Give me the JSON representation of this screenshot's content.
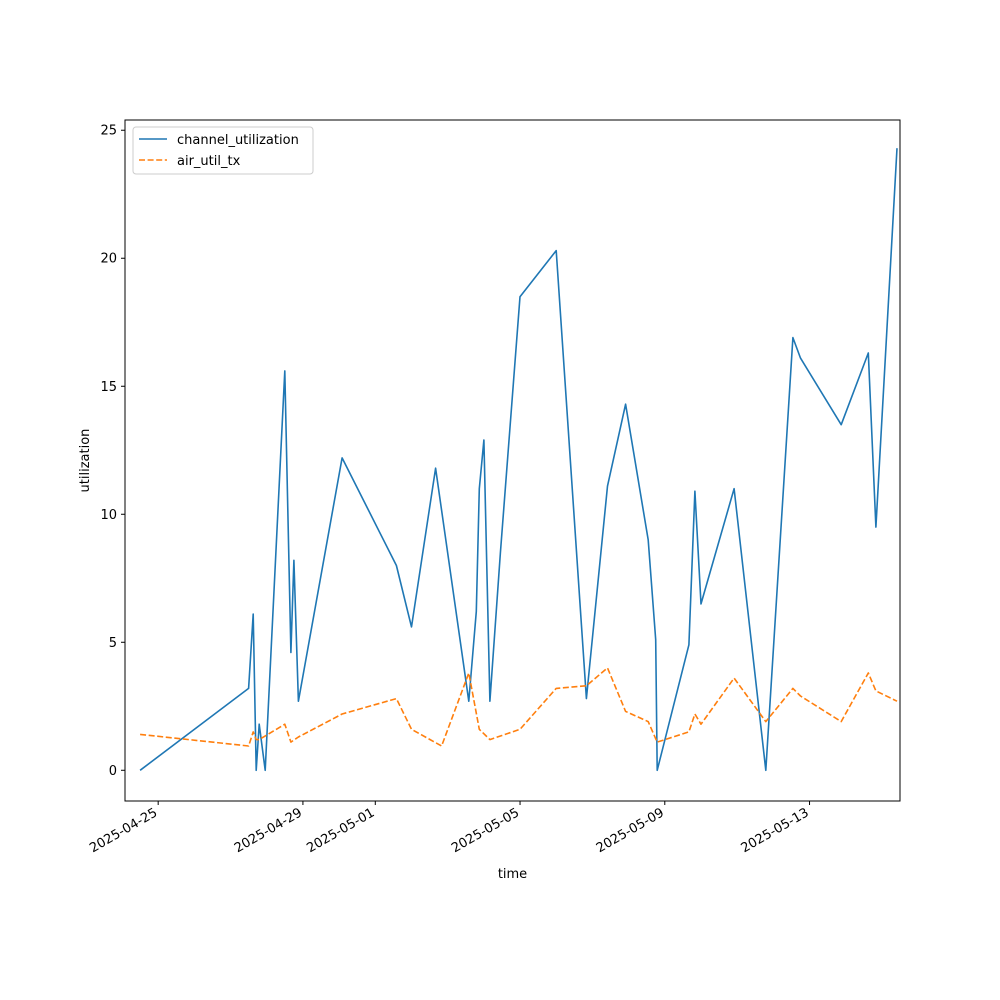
{
  "chart_data": {
    "type": "line",
    "xlabel": "time",
    "ylabel": "utilization",
    "xlim": [
      "2025-04-24 02:00",
      "2025-05-15 12:00"
    ],
    "ylim": [
      -1.2,
      25.4
    ],
    "grid": false,
    "legend_position": "top-left",
    "x_ticks": [
      "2025-04-25",
      "2025-04-29",
      "2025-05-01",
      "2025-05-05",
      "2025-05-09",
      "2025-05-13"
    ],
    "y_ticks": [
      0,
      5,
      10,
      15,
      20,
      25
    ],
    "series": [
      {
        "name": "channel_utilization",
        "color": "#1f77b4",
        "style": "solid",
        "points": [
          [
            "2025-04-24 12:00",
            0.0
          ],
          [
            "2025-04-27 12:00",
            3.2
          ],
          [
            "2025-04-27 15:00",
            6.1
          ],
          [
            "2025-04-27 17:00",
            0.0
          ],
          [
            "2025-04-27 19:00",
            1.8
          ],
          [
            "2025-04-27 23:00",
            0.0
          ],
          [
            "2025-04-28 12:00",
            15.6
          ],
          [
            "2025-04-28 16:00",
            4.6
          ],
          [
            "2025-04-28 18:00",
            8.2
          ],
          [
            "2025-04-28 21:00",
            2.7
          ],
          [
            "2025-04-30 02:00",
            12.2
          ],
          [
            "2025-05-01 14:00",
            8.0
          ],
          [
            "2025-05-02 00:00",
            5.6
          ],
          [
            "2025-05-02 16:00",
            11.8
          ],
          [
            "2025-05-03 14:00",
            2.7
          ],
          [
            "2025-05-03 19:00",
            6.2
          ],
          [
            "2025-05-03 21:00",
            11.0
          ],
          [
            "2025-05-04 00:00",
            12.9
          ],
          [
            "2025-05-04 04:00",
            2.7
          ],
          [
            "2025-05-04 11:00",
            8.5
          ],
          [
            "2025-05-05 00:00",
            18.5
          ],
          [
            "2025-05-06 00:00",
            20.3
          ],
          [
            "2025-05-06 20:00",
            2.8
          ],
          [
            "2025-05-07 10:00",
            11.1
          ],
          [
            "2025-05-07 22:00",
            14.3
          ],
          [
            "2025-05-08 13:00",
            9.0
          ],
          [
            "2025-05-08 18:00",
            5.1
          ],
          [
            "2025-05-08 19:00",
            0.0
          ],
          [
            "2025-05-09 16:00",
            4.9
          ],
          [
            "2025-05-09 20:00",
            10.9
          ],
          [
            "2025-05-10 00:00",
            6.5
          ],
          [
            "2025-05-10 22:00",
            11.0
          ],
          [
            "2025-05-11 19:00",
            0.0
          ],
          [
            "2025-05-12 13:00",
            16.9
          ],
          [
            "2025-05-12 18:00",
            16.1
          ],
          [
            "2025-05-13 21:00",
            13.5
          ],
          [
            "2025-05-14 15:00",
            16.3
          ],
          [
            "2025-05-14 20:00",
            9.5
          ],
          [
            "2025-05-15 10:00",
            24.3
          ]
        ]
      },
      {
        "name": "air_util_tx",
        "color": "#ff7f0e",
        "style": "dashed",
        "points": [
          [
            "2025-04-24 12:00",
            1.4
          ],
          [
            "2025-04-27 12:00",
            0.95
          ],
          [
            "2025-04-27 15:00",
            1.5
          ],
          [
            "2025-04-27 17:00",
            1.2
          ],
          [
            "2025-04-27 19:00",
            1.2
          ],
          [
            "2025-04-28 12:00",
            1.8
          ],
          [
            "2025-04-28 16:00",
            1.1
          ],
          [
            "2025-04-28 21:00",
            1.3
          ],
          [
            "2025-04-30 02:00",
            2.2
          ],
          [
            "2025-05-01 14:00",
            2.8
          ],
          [
            "2025-05-02 00:00",
            1.6
          ],
          [
            "2025-05-02 20:00",
            0.95
          ],
          [
            "2025-05-03 14:00",
            3.8
          ],
          [
            "2025-05-03 21:00",
            1.6
          ],
          [
            "2025-05-04 04:00",
            1.2
          ],
          [
            "2025-05-05 00:00",
            1.6
          ],
          [
            "2025-05-06 00:00",
            3.2
          ],
          [
            "2025-05-06 20:00",
            3.3
          ],
          [
            "2025-05-07 10:00",
            4.0
          ],
          [
            "2025-05-07 22:00",
            2.3
          ],
          [
            "2025-05-08 13:00",
            1.9
          ],
          [
            "2025-05-08 19:00",
            1.1
          ],
          [
            "2025-05-09 16:00",
            1.5
          ],
          [
            "2025-05-09 20:00",
            2.2
          ],
          [
            "2025-05-10 00:00",
            1.8
          ],
          [
            "2025-05-10 22:00",
            3.6
          ],
          [
            "2025-05-11 19:00",
            1.9
          ],
          [
            "2025-05-12 13:00",
            3.2
          ],
          [
            "2025-05-12 18:00",
            2.9
          ],
          [
            "2025-05-13 21:00",
            1.9
          ],
          [
            "2025-05-14 15:00",
            3.8
          ],
          [
            "2025-05-14 20:00",
            3.1
          ],
          [
            "2025-05-15 10:00",
            2.7
          ]
        ]
      }
    ]
  }
}
